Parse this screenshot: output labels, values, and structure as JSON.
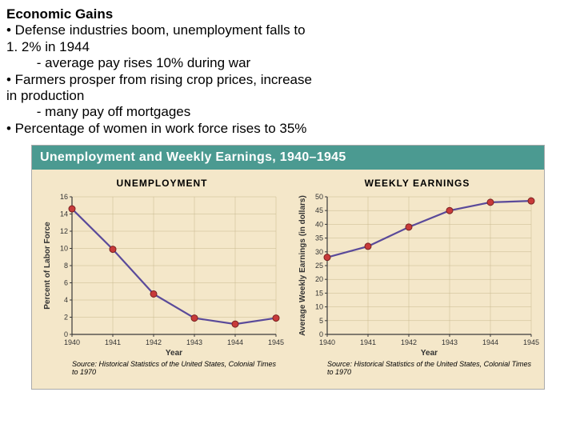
{
  "header": {
    "title": "Economic Gains",
    "lines": [
      "• Defense industries boom, unemployment falls to",
      "1. 2% in 1944",
      "        - average pay rises 10% during war",
      "• Farmers prosper from rising crop prices, increase",
      "in production",
      "        - many pay off mortgages",
      "• Percentage of women in work force rises to 35%"
    ]
  },
  "banner": {
    "text": "Unemployment and Weekly Earnings, 1940–1945",
    "bg_color": "#4b9a91",
    "text_color": "#ffffff"
  },
  "panel_bg": "#f4e7c9",
  "container_bg": "#f4e7c9",
  "axis_color": "#3a3a3a",
  "grid_color": "#c8b88f",
  "line_color": "#5a4a9a",
  "marker_fill": "#c83a3a",
  "marker_stroke": "#7a2222",
  "text_color": "#333333",
  "unemployment": {
    "title": "UNEMPLOYMENT",
    "xlabel": "Year",
    "ylabel": "Percent of Labor Force",
    "xticks": [
      1940,
      1941,
      1942,
      1943,
      1944,
      1945
    ],
    "yticks": [
      0,
      2,
      4,
      6,
      8,
      10,
      12,
      14,
      16
    ],
    "xlim": [
      1940,
      1945
    ],
    "ylim": [
      0,
      16
    ],
    "x": [
      1940,
      1941,
      1942,
      1943,
      1944,
      1945
    ],
    "y": [
      14.6,
      9.9,
      4.7,
      1.9,
      1.2,
      1.9
    ],
    "source": "Source: Historical Statistics of the United States, Colonial Times to 1970"
  },
  "earnings": {
    "title": "WEEKLY EARNINGS",
    "xlabel": "Year",
    "ylabel": "Average Weekly Earnings (in dollars)",
    "xticks": [
      1940,
      1941,
      1942,
      1943,
      1944,
      1945
    ],
    "yticks": [
      0,
      5,
      10,
      15,
      20,
      25,
      30,
      35,
      40,
      45,
      50
    ],
    "xlim": [
      1940,
      1945
    ],
    "ylim": [
      0,
      50
    ],
    "x": [
      1940,
      1941,
      1942,
      1943,
      1944,
      1945
    ],
    "y": [
      28,
      32,
      39,
      45,
      48,
      48.5
    ],
    "source": "Source: Historical Statistics of the United States, Colonial Times to 1970"
  }
}
